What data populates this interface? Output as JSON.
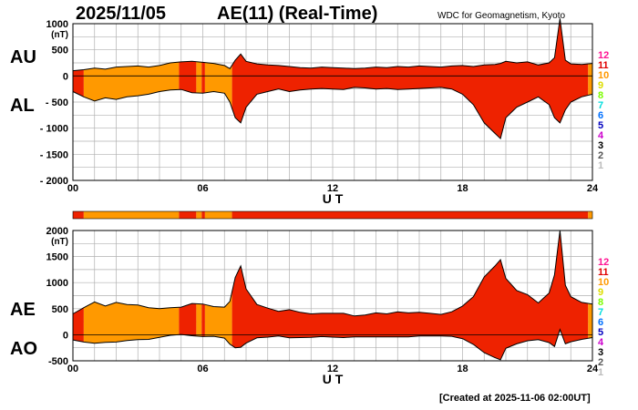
{
  "header": {
    "date": "2025/11/05",
    "index_title": "AE(11) (Real-Time)",
    "credit": "WDC for Geomagnetism, Kyoto"
  },
  "footer": {
    "created": "[Created at 2025-11-06 02:00UT]"
  },
  "side_labels": {
    "au": "AU",
    "al": "AL",
    "ae": "AE",
    "ao": "AO"
  },
  "station_scale": {
    "labels": [
      "12",
      "11",
      "10",
      "9",
      "8",
      "7",
      "6",
      "5",
      "4",
      "3",
      "2",
      "1"
    ],
    "colors": [
      "#ff1493",
      "#e00000",
      "#ff9900",
      "#dddd00",
      "#7cfc00",
      "#00dddd",
      "#0070ff",
      "#0000c0",
      "#cc00cc",
      "#000000",
      "#555555",
      "#bbbbbb"
    ]
  },
  "chart_data": [
    {
      "type": "area",
      "panel": "AU / AL",
      "ylabel": "(nT)",
      "xlabel": "U T",
      "xlim": [
        0,
        24
      ],
      "ylim": [
        -2000,
        1000
      ],
      "xticks": [
        "00",
        "06",
        "12",
        "18",
        "24"
      ],
      "yticks": [
        "1000",
        "500",
        "0",
        "- 500",
        "- 1000",
        "- 1500",
        "- 2000"
      ],
      "x": [
        0,
        0.5,
        1,
        1.5,
        2,
        2.5,
        3,
        3.5,
        4,
        4.5,
        5,
        5.5,
        6,
        6.5,
        7,
        7.25,
        7.5,
        7.75,
        8,
        8.5,
        9,
        9.5,
        10,
        10.5,
        11,
        11.5,
        12,
        12.5,
        13,
        13.5,
        14,
        14.5,
        15,
        15.5,
        16,
        16.5,
        17,
        17.5,
        18,
        18.5,
        19,
        19.5,
        19.75,
        20,
        20.5,
        21,
        21.5,
        22,
        22.25,
        22.5,
        22.75,
        23,
        23.5,
        24
      ],
      "series": [
        {
          "name": "AU",
          "values": [
            100,
            120,
            150,
            130,
            170,
            180,
            190,
            170,
            200,
            250,
            270,
            280,
            260,
            240,
            200,
            140,
            300,
            420,
            280,
            230,
            210,
            200,
            180,
            160,
            150,
            170,
            160,
            150,
            140,
            150,
            170,
            160,
            180,
            170,
            190,
            180,
            170,
            190,
            200,
            180,
            210,
            220,
            240,
            280,
            250,
            270,
            210,
            250,
            350,
            1100,
            300,
            230,
            220,
            240
          ]
        },
        {
          "name": "AL",
          "values": [
            -300,
            -400,
            -480,
            -420,
            -450,
            -400,
            -380,
            -350,
            -300,
            -270,
            -260,
            -320,
            -330,
            -300,
            -330,
            -500,
            -800,
            -900,
            -600,
            -350,
            -300,
            -250,
            -300,
            -270,
            -250,
            -240,
            -250,
            -260,
            -220,
            -230,
            -250,
            -240,
            -260,
            -250,
            -240,
            -230,
            -220,
            -250,
            -350,
            -550,
            -900,
            -1100,
            -1200,
            -800,
            -600,
            -500,
            -400,
            -550,
            -800,
            -900,
            -650,
            -500,
            -400,
            -350
          ]
        }
      ],
      "station_count_segments": [
        {
          "from": 0,
          "to": 0.5,
          "stations": 11
        },
        {
          "from": 0.5,
          "to": 4.9,
          "stations": 10
        },
        {
          "from": 4.9,
          "to": 5.7,
          "stations": 11
        },
        {
          "from": 5.7,
          "to": 5.95,
          "stations": 10
        },
        {
          "from": 5.95,
          "to": 6.1,
          "stations": 11
        },
        {
          "from": 6.1,
          "to": 7.35,
          "stations": 10
        },
        {
          "from": 7.35,
          "to": 23.8,
          "stations": 11
        },
        {
          "from": 23.8,
          "to": 24,
          "stations": 10
        }
      ]
    },
    {
      "type": "area",
      "panel": "AE / AO",
      "ylabel": "(nT)",
      "xlabel": "U T",
      "xlim": [
        0,
        24
      ],
      "ylim": [
        -500,
        2000
      ],
      "xticks": [
        "00",
        "06",
        "12",
        "18",
        "24"
      ],
      "yticks": [
        "2000",
        "1500",
        "1000",
        "500",
        "0",
        "-500"
      ],
      "x": [
        0,
        0.5,
        1,
        1.5,
        2,
        2.5,
        3,
        3.5,
        4,
        4.5,
        5,
        5.5,
        6,
        6.5,
        7,
        7.25,
        7.5,
        7.75,
        8,
        8.5,
        9,
        9.5,
        10,
        10.5,
        11,
        11.5,
        12,
        12.5,
        13,
        13.5,
        14,
        14.5,
        15,
        15.5,
        16,
        16.5,
        17,
        17.5,
        18,
        18.5,
        19,
        19.5,
        19.75,
        20,
        20.5,
        21,
        21.5,
        22,
        22.25,
        22.5,
        22.75,
        23,
        23.5,
        24
      ],
      "series": [
        {
          "name": "AE",
          "values": [
            400,
            520,
            630,
            550,
            620,
            580,
            570,
            520,
            500,
            520,
            530,
            600,
            590,
            540,
            530,
            640,
            1100,
            1320,
            880,
            580,
            510,
            450,
            480,
            430,
            400,
            410,
            410,
            410,
            360,
            380,
            420,
            400,
            440,
            420,
            430,
            410,
            390,
            440,
            550,
            730,
            1110,
            1320,
            1440,
            1080,
            850,
            770,
            610,
            800,
            1150,
            2000,
            950,
            730,
            620,
            590
          ]
        },
        {
          "name": "AO",
          "values": [
            -100,
            -140,
            -165,
            -145,
            -140,
            -110,
            -95,
            -90,
            -50,
            -10,
            5,
            -20,
            -35,
            -30,
            -65,
            -180,
            -250,
            -240,
            -160,
            -60,
            -45,
            -25,
            -60,
            -55,
            -50,
            -35,
            -45,
            -55,
            -40,
            -40,
            -40,
            -40,
            -40,
            -40,
            -25,
            -25,
            -25,
            -30,
            -75,
            -185,
            -345,
            -440,
            -480,
            -260,
            -175,
            -115,
            -95,
            -150,
            -225,
            100,
            -175,
            -135,
            -90,
            -55
          ]
        }
      ]
    }
  ]
}
